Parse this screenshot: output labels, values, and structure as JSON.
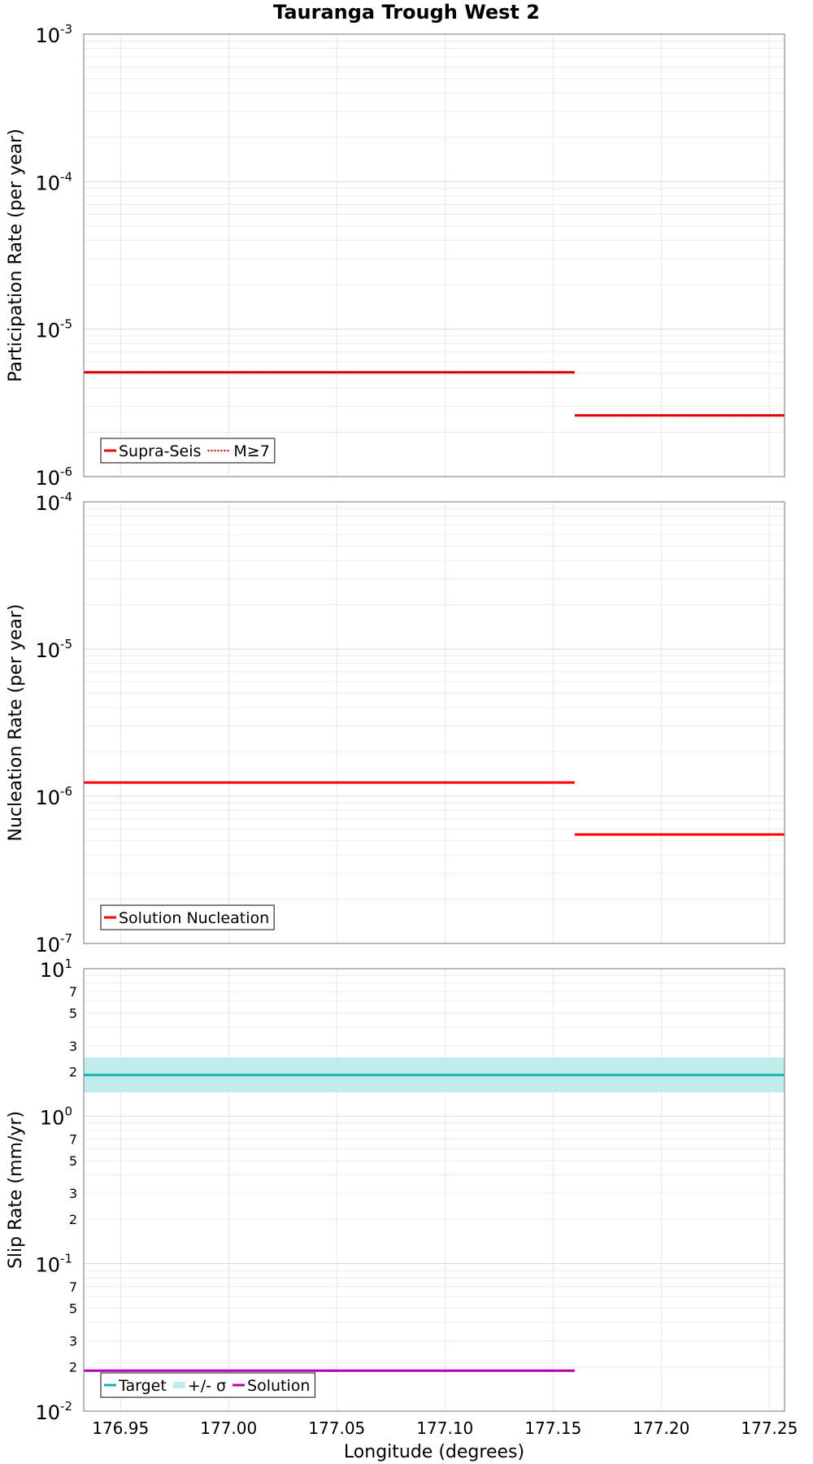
{
  "chart_data": [
    {
      "type": "line",
      "title": "Tauranga Trough West 2",
      "ylabel": "Participation Rate (per year)",
      "xlabel": "",
      "xlim": [
        176.933,
        177.257
      ],
      "ylim": [
        1e-06,
        0.001
      ],
      "yscale": "log",
      "y_ticks": [
        {
          "base": "10",
          "exp": "-6",
          "value": 1e-06
        },
        {
          "base": "10",
          "exp": "-5",
          "value": 1e-05
        },
        {
          "base": "10",
          "exp": "-4",
          "value": 0.0001
        },
        {
          "base": "10",
          "exp": "-3",
          "value": 0.001
        }
      ],
      "series": [
        {
          "name": "Supra-Seis",
          "style": "solid",
          "color": "#ff0000",
          "segments": [
            {
              "x": [
                176.933,
                177.16
              ],
              "y": 5.1e-06
            },
            {
              "x": [
                177.16,
                177.257
              ],
              "y": 2.6e-06
            }
          ]
        },
        {
          "name": "M≥7",
          "style": "dotted",
          "color": "#ff0000",
          "segments": [
            {
              "x": [
                176.933,
                177.16
              ],
              "y": 5.1e-06
            },
            {
              "x": [
                177.16,
                177.257
              ],
              "y": 2.6e-06
            }
          ]
        }
      ],
      "legend": {
        "position": "bottom-left",
        "items": [
          "Supra-Seis",
          "M≥7"
        ]
      }
    },
    {
      "type": "line",
      "title": "",
      "ylabel": "Nucleation Rate (per year)",
      "xlabel": "",
      "xlim": [
        176.933,
        177.257
      ],
      "ylim": [
        1e-07,
        0.0001
      ],
      "yscale": "log",
      "y_ticks": [
        {
          "base": "10",
          "exp": "-7",
          "value": 1e-07
        },
        {
          "base": "10",
          "exp": "-6",
          "value": 1e-06
        },
        {
          "base": "10",
          "exp": "-5",
          "value": 1e-05
        },
        {
          "base": "10",
          "exp": "-4",
          "value": 0.0001
        }
      ],
      "series": [
        {
          "name": "Solution Nucleation",
          "style": "solid",
          "color": "#ff0000",
          "segments": [
            {
              "x": [
                176.933,
                177.16
              ],
              "y": 1.24e-06
            },
            {
              "x": [
                177.16,
                177.257
              ],
              "y": 5.5e-07
            }
          ]
        }
      ],
      "legend": {
        "position": "bottom-left",
        "items": [
          "Solution Nucleation"
        ]
      }
    },
    {
      "type": "line",
      "title": "",
      "ylabel": "Slip Rate (mm/yr)",
      "xlabel": "Longitude (degrees)",
      "xlim": [
        176.933,
        177.257
      ],
      "ylim": [
        0.01,
        10
      ],
      "yscale": "log",
      "y_ticks": [
        {
          "base": "10",
          "exp": "-2",
          "value": 0.01
        },
        {
          "base": "10",
          "exp": "-1",
          "value": 0.1
        },
        {
          "base": "10",
          "exp": "0",
          "value": 1
        },
        {
          "base": "10",
          "exp": "1",
          "value": 10
        }
      ],
      "y_minor_ticks": [
        {
          "label": "2",
          "value": 0.02
        },
        {
          "label": "3",
          "value": 0.03
        },
        {
          "label": "5",
          "value": 0.05
        },
        {
          "label": "7",
          "value": 0.07
        },
        {
          "label": "2",
          "value": 0.2
        },
        {
          "label": "3",
          "value": 0.3
        },
        {
          "label": "5",
          "value": 0.5
        },
        {
          "label": "7",
          "value": 0.7
        },
        {
          "label": "2",
          "value": 2
        },
        {
          "label": "3",
          "value": 3
        },
        {
          "label": "5",
          "value": 5
        },
        {
          "label": "7",
          "value": 7
        }
      ],
      "x_ticks": [
        "176.95",
        "177.00",
        "177.05",
        "177.10",
        "177.15",
        "177.20",
        "177.25"
      ],
      "series": [
        {
          "name": "+/- σ",
          "style": "band",
          "color": "#c2ecec",
          "x": [
            176.933,
            177.257
          ],
          "y_low": 1.45,
          "y_high": 2.5
        },
        {
          "name": "Target",
          "style": "solid",
          "color": "#17b1b1",
          "x": [
            176.933,
            177.257
          ],
          "y": 1.9
        },
        {
          "name": "Solution",
          "style": "solid",
          "color": "#b400b4",
          "x": [
            176.933,
            177.16
          ],
          "y": 0.0188
        }
      ],
      "legend": {
        "position": "bottom-left",
        "items": [
          "Target",
          "+/- σ",
          "Solution"
        ]
      }
    }
  ]
}
